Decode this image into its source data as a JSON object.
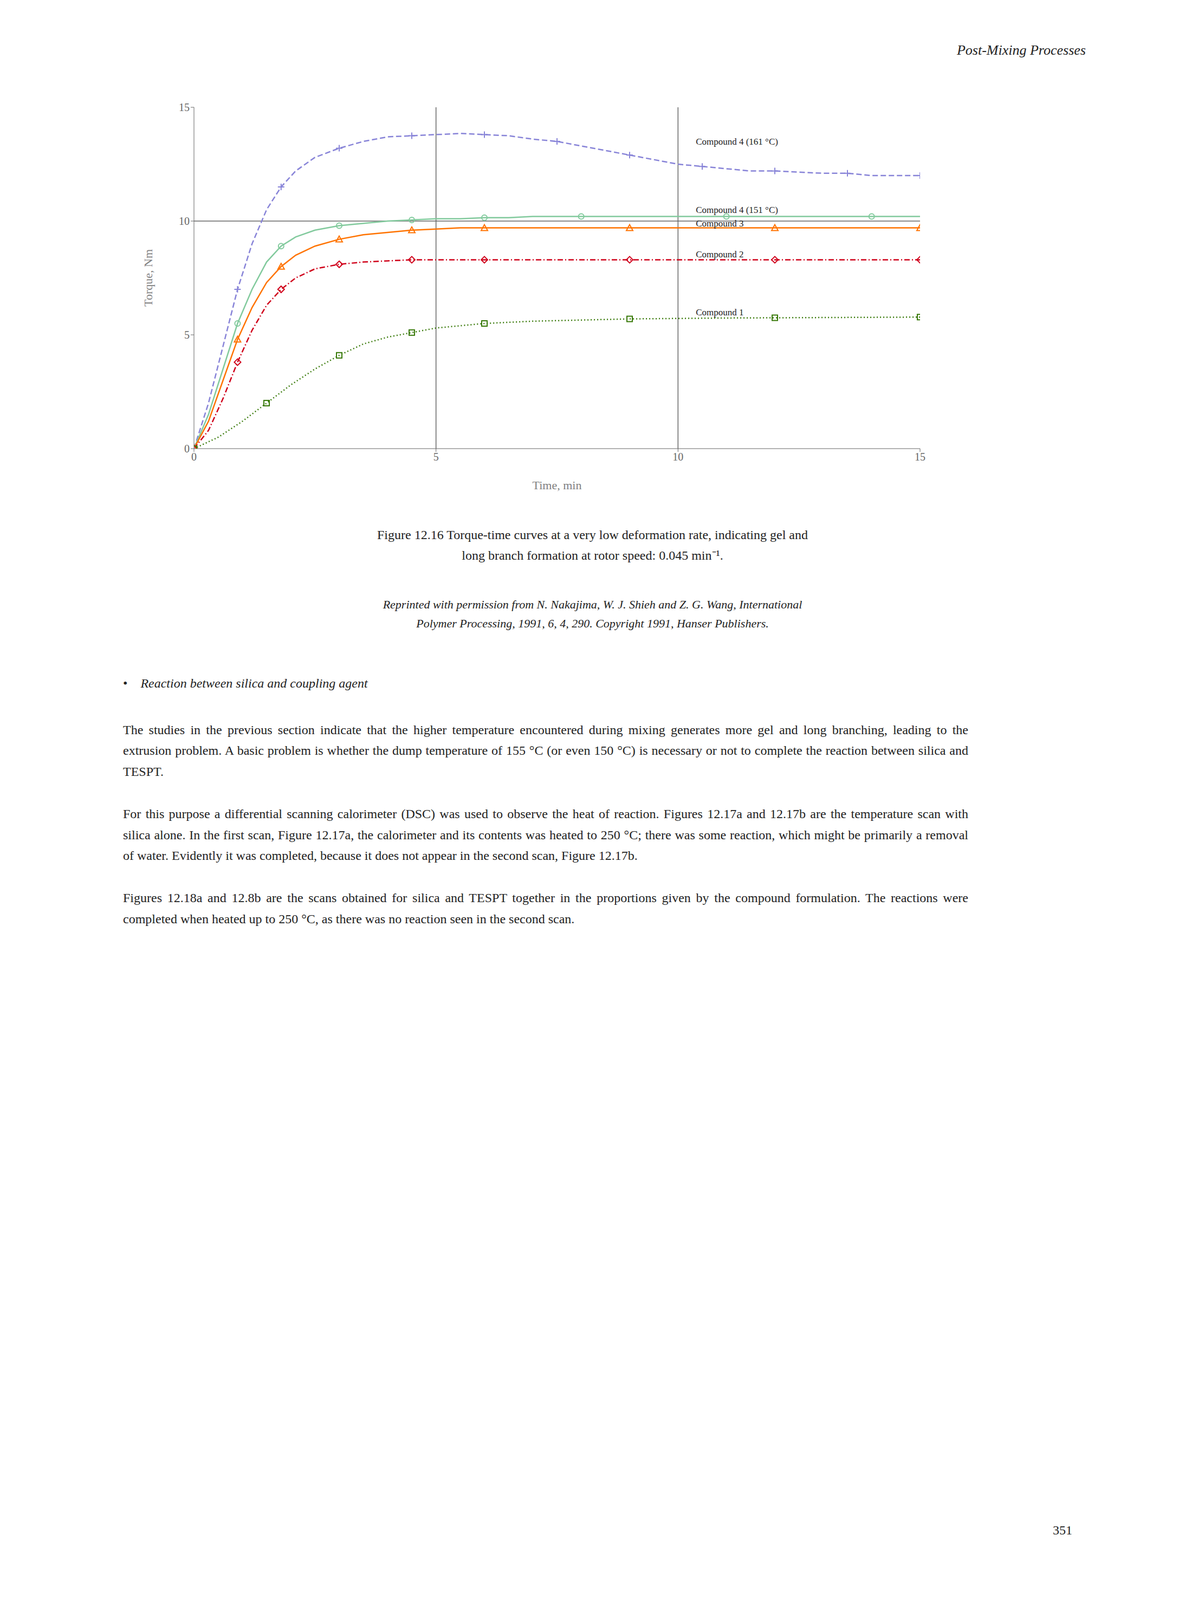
{
  "header": "Post-Mixing Processes",
  "chart_data": {
    "type": "line",
    "xlabel": "Time, min",
    "ylabel": "Torque, Nm",
    "xlim": [
      0,
      15
    ],
    "ylim": [
      0,
      15
    ],
    "xticks": [
      0,
      5,
      10,
      15
    ],
    "yticks": [
      0,
      5,
      10,
      15
    ],
    "vlines": [
      5.0,
      10.0
    ],
    "hlines": [
      10.0
    ],
    "series": [
      {
        "name": "Compound 4 (161 °C)",
        "line_style": "dashed",
        "marker": "plus",
        "x": [
          0,
          0.3,
          0.6,
          0.9,
          1.2,
          1.5,
          1.8,
          2.1,
          2.5,
          3.0,
          3.5,
          4.0,
          4.5,
          5.0,
          5.5,
          6.0,
          6.5,
          7.0,
          7.5,
          8.0,
          8.5,
          9.0,
          9.5,
          10.0,
          10.5,
          11.0,
          11.5,
          12.0,
          12.5,
          13.0,
          13.5,
          14.0,
          14.5,
          15.0
        ],
        "values": [
          0,
          2.0,
          4.5,
          7.0,
          9.0,
          10.5,
          11.5,
          12.2,
          12.8,
          13.2,
          13.5,
          13.7,
          13.75,
          13.8,
          13.85,
          13.8,
          13.75,
          13.6,
          13.5,
          13.3,
          13.1,
          12.9,
          12.7,
          12.5,
          12.4,
          12.3,
          12.2,
          12.2,
          12.15,
          12.1,
          12.1,
          12.0,
          12.0,
          12.0
        ]
      },
      {
        "name": "Compound 4 (151 °C)",
        "line_style": "solid",
        "marker": "circle",
        "x": [
          0,
          0.3,
          0.6,
          0.9,
          1.2,
          1.5,
          1.8,
          2.1,
          2.5,
          3.0,
          3.5,
          4.0,
          4.5,
          5.0,
          5.5,
          6.0,
          6.5,
          7.0,
          8.0,
          9.0,
          10.0,
          11.0,
          12.0,
          13.0,
          14.0,
          15.0
        ],
        "values": [
          0,
          1.5,
          3.5,
          5.5,
          7.0,
          8.2,
          8.9,
          9.3,
          9.6,
          9.8,
          9.9,
          10.0,
          10.05,
          10.1,
          10.1,
          10.15,
          10.15,
          10.2,
          10.2,
          10.2,
          10.2,
          10.2,
          10.2,
          10.2,
          10.2,
          10.2
        ]
      },
      {
        "name": "Compound 3",
        "line_style": "solid",
        "marker": "triangle",
        "x": [
          0,
          0.3,
          0.6,
          0.9,
          1.2,
          1.5,
          1.8,
          2.1,
          2.5,
          3.0,
          3.5,
          4.0,
          4.5,
          5.0,
          5.5,
          6.0,
          7.0,
          8.0,
          9.0,
          10.0,
          11.0,
          12.0,
          13.0,
          14.0,
          15.0
        ],
        "values": [
          0,
          1.2,
          3.0,
          4.8,
          6.2,
          7.3,
          8.0,
          8.5,
          8.9,
          9.2,
          9.4,
          9.5,
          9.6,
          9.65,
          9.7,
          9.7,
          9.7,
          9.7,
          9.7,
          9.7,
          9.7,
          9.7,
          9.7,
          9.7,
          9.7
        ]
      },
      {
        "name": "Compound 2",
        "line_style": "dashdot",
        "marker": "diamond",
        "x": [
          0,
          0.3,
          0.6,
          0.9,
          1.2,
          1.5,
          1.8,
          2.1,
          2.5,
          3.0,
          3.5,
          4.0,
          4.5,
          5.0,
          5.5,
          6.0,
          7.0,
          8.0,
          9.0,
          10.0,
          11.0,
          12.0,
          13.0,
          14.0,
          15.0
        ],
        "values": [
          0,
          0.8,
          2.2,
          3.8,
          5.2,
          6.3,
          7.0,
          7.5,
          7.9,
          8.1,
          8.2,
          8.25,
          8.3,
          8.3,
          8.3,
          8.3,
          8.3,
          8.3,
          8.3,
          8.3,
          8.3,
          8.3,
          8.3,
          8.3,
          8.3
        ]
      },
      {
        "name": "Compound 1",
        "line_style": "dotted",
        "marker": "square",
        "x": [
          0,
          0.5,
          1.0,
          1.5,
          2.0,
          2.5,
          3.0,
          3.5,
          4.0,
          4.5,
          5.0,
          5.5,
          6.0,
          7.0,
          8.0,
          9.0,
          10.0,
          11.0,
          12.0,
          13.0,
          14.0,
          15.0
        ],
        "values": [
          0,
          0.5,
          1.2,
          2.0,
          2.8,
          3.5,
          4.1,
          4.6,
          4.9,
          5.1,
          5.3,
          5.4,
          5.5,
          5.6,
          5.65,
          5.7,
          5.72,
          5.74,
          5.75,
          5.76,
          5.77,
          5.78
        ]
      }
    ],
    "annotations": [
      {
        "text": "Compound 4 (161 °C)",
        "x": 10.3,
        "y": 13.5
      },
      {
        "text": "Compound 4 (151 °C)",
        "x": 10.3,
        "y": 10.5
      },
      {
        "text": "Compound 3",
        "x": 10.3,
        "y": 9.9
      },
      {
        "text": "Compound 2",
        "x": 10.3,
        "y": 8.55
      },
      {
        "text": "Compound 1",
        "x": 10.3,
        "y": 6.0
      }
    ]
  },
  "caption": [
    "Figure 12.16 Torque-time curves at a very low deformation rate, indicating gel and",
    "long branch formation at rotor speed: 0.045 min⁻¹."
  ],
  "reprinted": [
    "Reprinted with permission from N. Nakajima, W. J. Shieh and Z. G. Wang, International",
    "Polymer Processing, 1991, 6, 4, 290. Copyright 1991, Hanser Publishers."
  ],
  "bullet": "•",
  "bullet_heading": "Reaction between silica and coupling agent",
  "paragraphs": [
    "The studies in the previous section indicate that the higher temperature encountered during mixing generates more gel and long branching, leading to the extrusion problem. A basic problem is whether the dump temperature of 155 °C (or even 150 °C) is necessary or not to complete the reaction between silica and TESPT.",
    "For this purpose a differential scanning calorimeter (DSC) was used to observe the heat of reaction. Figures 12.17a and 12.17b are the temperature scan with silica alone. In the first scan, Figure 12.17a, the calorimeter and its contents was heated to 250 °C; there was some reaction, which might be primarily a removal of water. Evidently it was completed, because it does not appear in the second scan, Figure 12.17b.",
    "Figures 12.18a and 12.8b are the scans obtained for silica and TESPT together in the proportions given by the compound formulation. The reactions were completed when heated up to 250 °C, as there was no reaction seen in the second scan."
  ],
  "page_number": "351"
}
